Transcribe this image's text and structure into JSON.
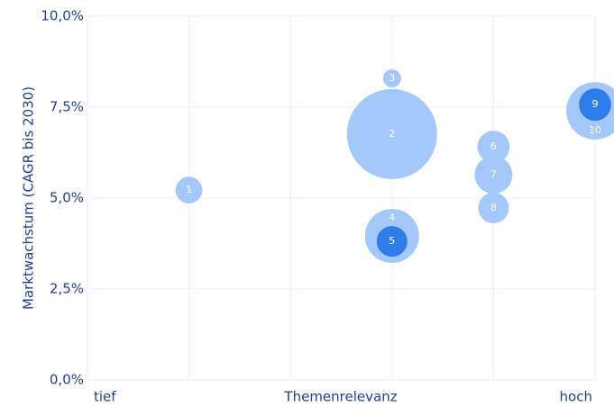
{
  "chart_data": {
    "type": "bubble",
    "y_axis_title": "Marktwachstum (CAGR bis 2030)",
    "x_axis_title": "Themenrelevanz",
    "x_axis_ends": [
      "tief",
      "hoch"
    ],
    "xlim": [
      0,
      5
    ],
    "xgrid": [
      0,
      1,
      2,
      3,
      4,
      5
    ],
    "ylim": [
      0,
      10
    ],
    "yticks": [
      {
        "value": 0,
        "label": "0,0%"
      },
      {
        "value": 2.5,
        "label": "2,5%"
      },
      {
        "value": 5,
        "label": "5,0%"
      },
      {
        "value": 7.5,
        "label": "7,5%"
      },
      {
        "value": 10,
        "label": "10,0%"
      }
    ],
    "grid": true,
    "labels": [
      "1",
      "2",
      "3",
      "4",
      "5",
      "6",
      "7",
      "8",
      "9",
      "10"
    ],
    "x": [
      1,
      3,
      3,
      3,
      3,
      4,
      4,
      4,
      5,
      5
    ],
    "y": [
      5.22,
      6.76,
      8.29,
      3.96,
      3.81,
      6.41,
      5.64,
      4.73,
      7.57,
      7.4
    ],
    "sizes": [
      22,
      250,
      10,
      90,
      29,
      32,
      44,
      29,
      32,
      102
    ],
    "colors": [
      "#a3c8f9",
      "#a3c8f9",
      "#a3c8f9",
      "#a3c8f9",
      "#2f7de8",
      "#a3c8f9",
      "#a3c8f9",
      "#a3c8f9",
      "#2f7de8",
      "#a3c8f9"
    ]
  }
}
